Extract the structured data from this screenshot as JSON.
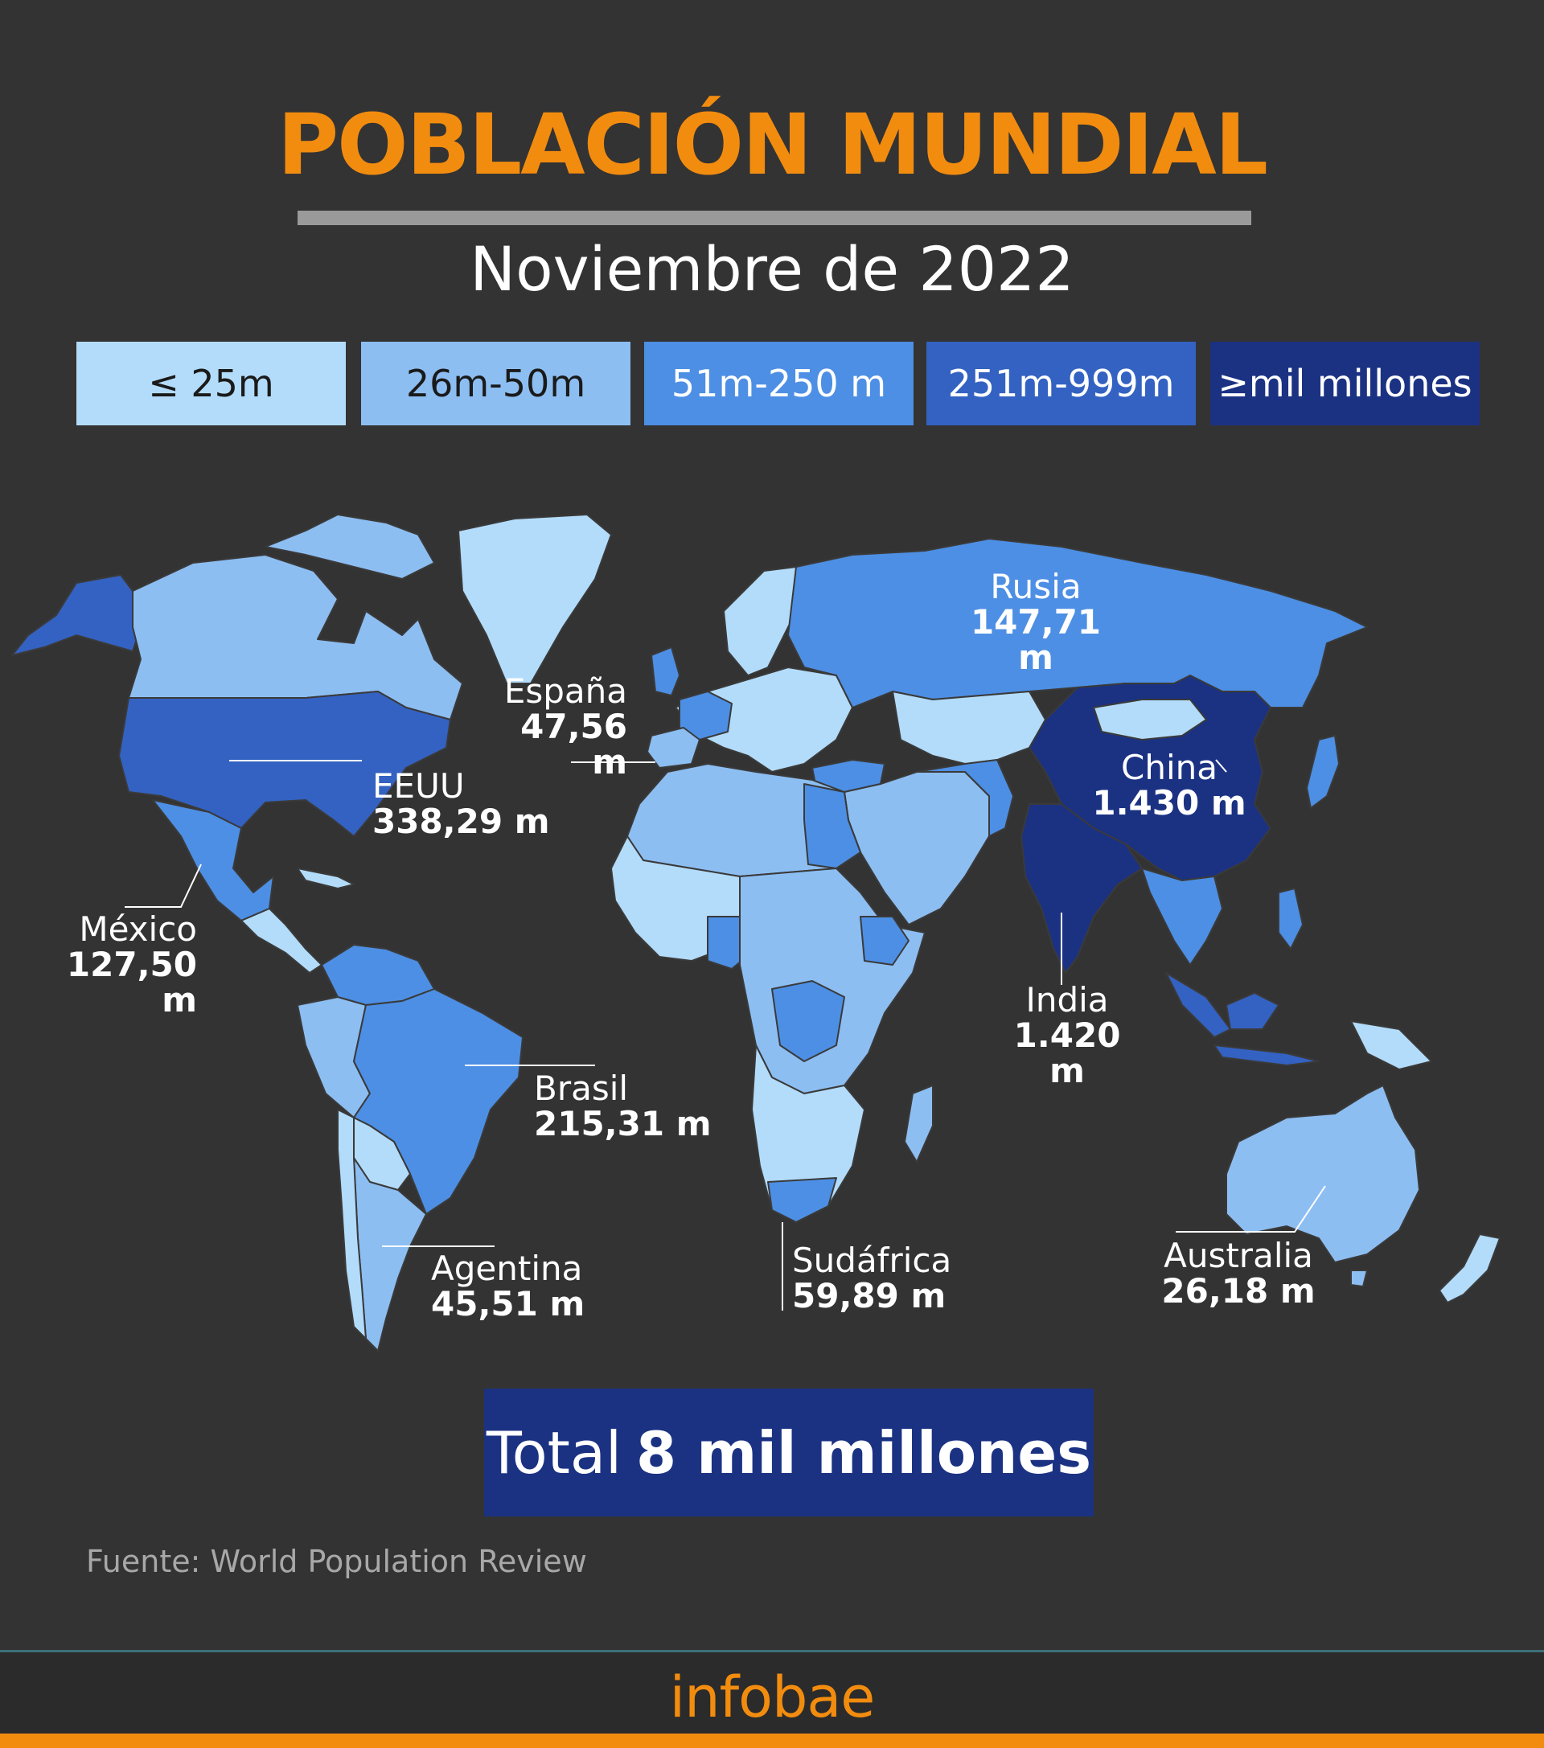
{
  "title": "POBLACIÓN MUNDIAL",
  "subtitle": "Noviembre de 2022",
  "colors": {
    "background": "#333333",
    "accent": "#f28c0f",
    "tier1": "#b3dcfb",
    "tier2": "#8dbef2",
    "tier3": "#4d8fe4",
    "tier4": "#3362c2",
    "tier5": "#1b3283"
  },
  "legend": [
    {
      "label": "≤ 25m",
      "color": "#b3dcfb",
      "text_color": "#1a1a1a"
    },
    {
      "label": "26m-50m",
      "color": "#8dbef2",
      "text_color": "#1a1a1a"
    },
    {
      "label": "51m-250 m",
      "color": "#4d8fe4",
      "text_color": "#ffffff"
    },
    {
      "label": "251m-999m",
      "color": "#3362c2",
      "text_color": "#ffffff"
    },
    {
      "label": "≥mil millones",
      "color": "#1b3283",
      "text_color": "#ffffff"
    }
  ],
  "countries": [
    {
      "name": "Rusia",
      "value": "147,71 m",
      "tier": 3
    },
    {
      "name": "España",
      "value": "47,56 m",
      "tier": 2
    },
    {
      "name": "EEUU",
      "value": "338,29 m",
      "tier": 4
    },
    {
      "name": "China",
      "value": "1.430 m",
      "tier": 5
    },
    {
      "name": "México",
      "value": "127,50 m",
      "tier": 3
    },
    {
      "name": "India",
      "value": "1.420 m",
      "tier": 5
    },
    {
      "name": "Brasil",
      "value": "215,31 m",
      "tier": 3
    },
    {
      "name": "Agentina",
      "value": "45,51 m",
      "tier": 2
    },
    {
      "name": "Sudáfrica",
      "value": "59,89 m",
      "tier": 3
    },
    {
      "name": "Australia",
      "value": "26,18 m",
      "tier": 2
    }
  ],
  "total": {
    "prefix": "Total",
    "value": "8 mil millones"
  },
  "source": "Fuente: World Population Review",
  "brand": "infobae"
}
